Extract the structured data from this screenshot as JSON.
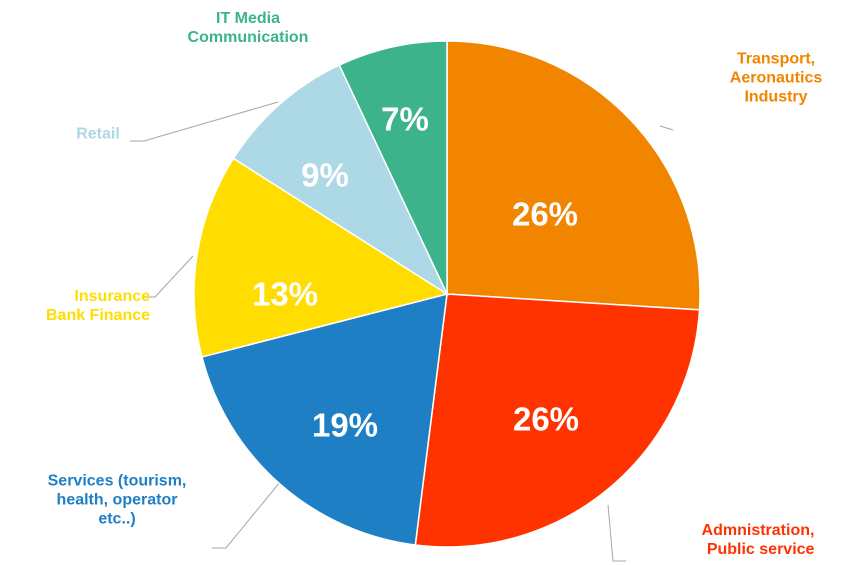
{
  "chart_data": {
    "type": "pie",
    "categories": [
      "Transport,\nAeronautics\nIndustry",
      "Admnistration,\nPublic service",
      "Services (tourism,\nhealth, operator\netc..)",
      "Insurance\nBank Finance",
      "Retail",
      "IT Media\nCommunication"
    ],
    "values": [
      26,
      26,
      19,
      13,
      9,
      7
    ],
    "value_labels": [
      "26%",
      "26%",
      "19%",
      "13%",
      "9%",
      "7%"
    ],
    "colors": [
      "#f28500",
      "#ff3300",
      "#1f7fc4",
      "#ffdd00",
      "#add8e6",
      "#3cb38a"
    ]
  }
}
